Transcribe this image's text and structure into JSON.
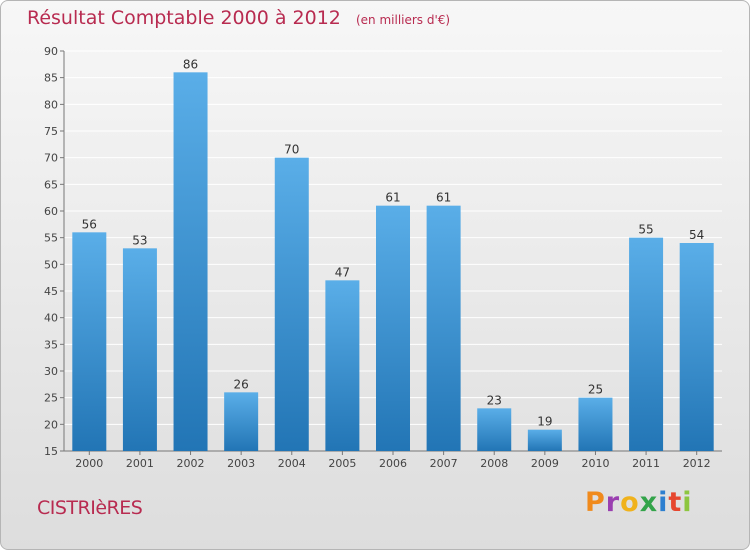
{
  "header": {
    "title": "Résultat Comptable 2000 à 2012",
    "subtitle": "(en milliers d'€)"
  },
  "footer": {
    "commune": "CISTRIèRES",
    "brand_letters": [
      "P",
      "r",
      "o",
      "x",
      "i",
      "t",
      "i"
    ]
  },
  "colors": {
    "bar_light": "#5aaee8",
    "bar_dark": "#2275b5",
    "title": "#b82b50",
    "brand": [
      "#f08a1c",
      "#9a3fb0",
      "#f0b21c",
      "#33a44a",
      "#2c7fd0",
      "#e6462e",
      "#8dc63f"
    ]
  },
  "chart_data": {
    "type": "bar",
    "title": "Résultat Comptable 2000 à 2012",
    "subtitle": "(en milliers d'€)",
    "categories": [
      "2000",
      "2001",
      "2002",
      "2003",
      "2004",
      "2005",
      "2006",
      "2007",
      "2008",
      "2009",
      "2010",
      "2011",
      "2012"
    ],
    "values": [
      56,
      53,
      86,
      26,
      70,
      47,
      61,
      61,
      23,
      19,
      25,
      55,
      54
    ],
    "ylim": [
      15,
      90
    ],
    "yticks": [
      15,
      20,
      25,
      30,
      35,
      40,
      45,
      50,
      55,
      60,
      65,
      70,
      75,
      80,
      85,
      90
    ],
    "grid": true
  }
}
